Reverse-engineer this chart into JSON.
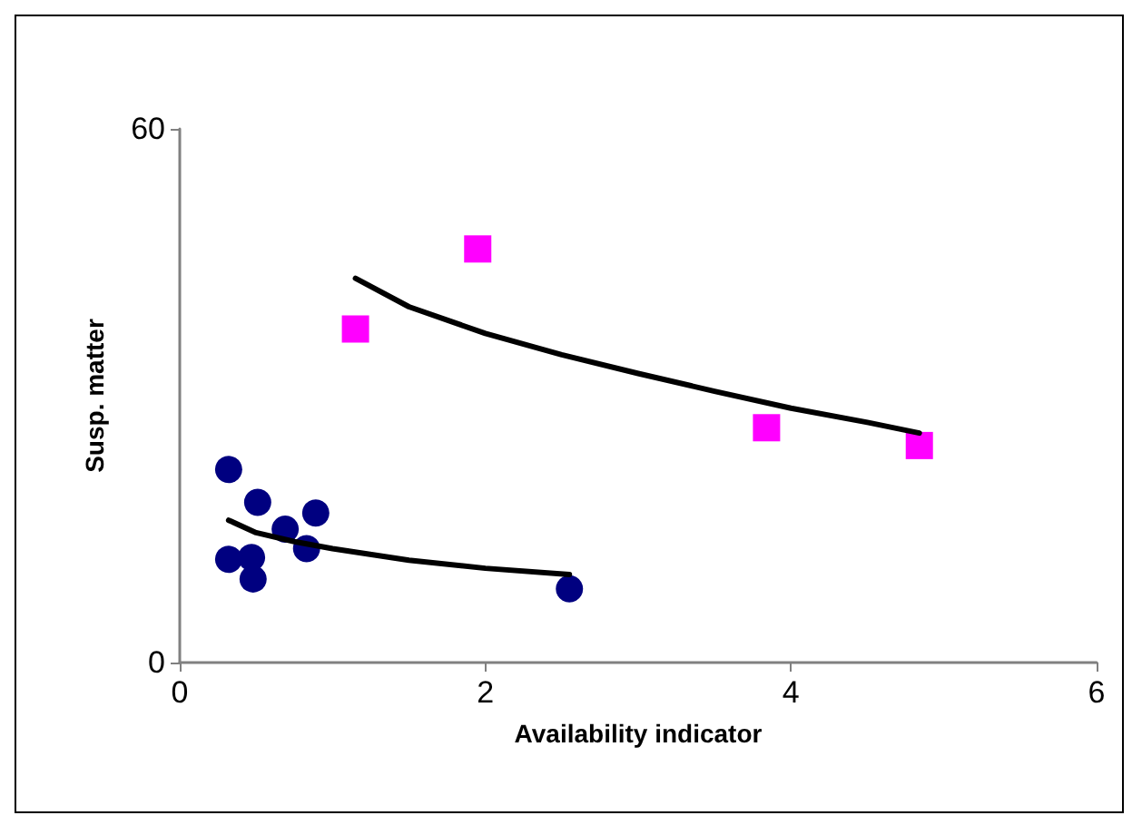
{
  "chart_data": {
    "type": "scatter",
    "xlabel": "Availability indicator",
    "ylabel": "Susp. matter",
    "xlim": [
      0,
      6
    ],
    "xticks": [
      0,
      2,
      4,
      6
    ],
    "ylim": [
      0,
      60
    ],
    "yticks": [
      0,
      60
    ],
    "grid": false,
    "series": [
      {
        "color": "#000080",
        "marker": "circle",
        "x": [
          0.32,
          0.51,
          0.89,
          0.69,
          0.83,
          0.32,
          0.47,
          0.48,
          2.55
        ],
        "values": [
          21.7,
          18.0,
          16.8,
          15.0,
          12.8,
          11.6,
          11.8,
          9.4,
          8.3
        ]
      },
      {
        "color": "#ff00ff",
        "marker": "square",
        "x": [
          1.15,
          1.95,
          3.84,
          4.84
        ],
        "values": [
          37.5,
          46.5,
          26.4,
          24.4
        ]
      },
      {
        "type": "line",
        "color": "#000000",
        "marker": "none",
        "line_style": "solid",
        "x": [
          0.32,
          0.5,
          0.75,
          1,
          1.5,
          2,
          2.55
        ],
        "values": [
          16.0,
          14.6,
          13.6,
          12.8,
          11.5,
          10.6,
          9.9
        ]
      },
      {
        "type": "line",
        "color": "#000000",
        "marker": "none",
        "line_style": "solid",
        "x": [
          1.15,
          1.5,
          2,
          2.5,
          3,
          3.5,
          4,
          4.5,
          4.84
        ],
        "values": [
          43.2,
          40.0,
          37.0,
          34.6,
          32.5,
          30.5,
          28.6,
          27.0,
          25.8
        ]
      }
    ]
  }
}
